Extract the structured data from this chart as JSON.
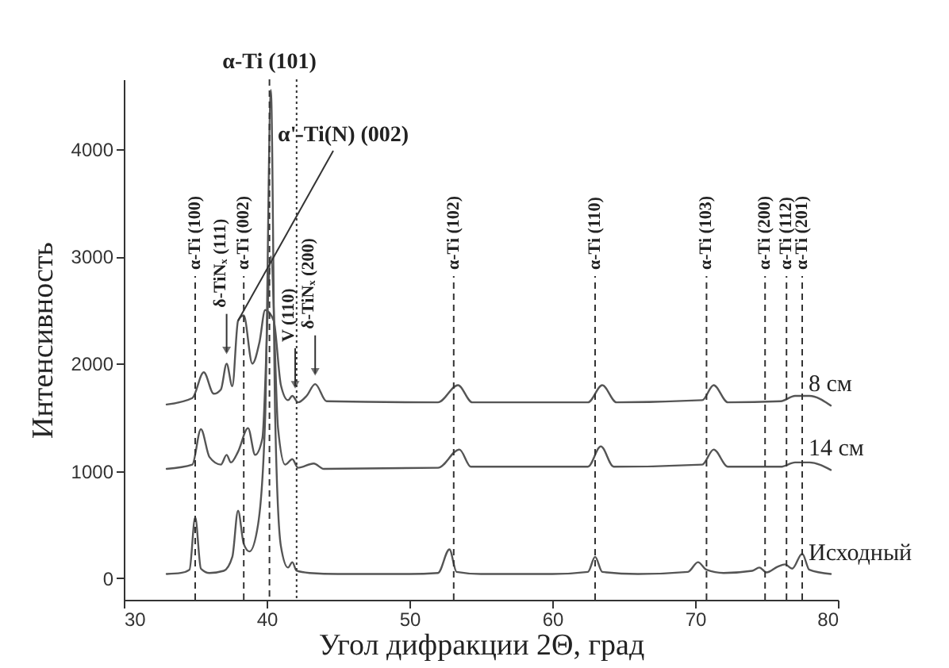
{
  "chart_data": {
    "type": "line",
    "xlabel": "Угол дифракции 2Θ, град",
    "ylabel": "Интенсивность",
    "xlim": [
      30,
      80
    ],
    "xticks": [
      30,
      40,
      50,
      60,
      70,
      80
    ],
    "ylim": [
      -200,
      4650
    ],
    "yticks": [
      0,
      1000,
      2000,
      3000,
      4000
    ],
    "grid": false,
    "legend": false,
    "marker": "none",
    "line_style": "solid",
    "series": [
      {
        "name": "8 см",
        "color": "#555555",
        "x": [
          33,
          34.8,
          35.6,
          36.3,
          36.8,
          37.2,
          37.6,
          38.0,
          38.4,
          39.0,
          39.5,
          39.9,
          40.5,
          41.0,
          41.5,
          41.8,
          42.2,
          42.8,
          43.4,
          44.2,
          52,
          53.4,
          54.4,
          62.5,
          63.5,
          64.5,
          70.5,
          71.3,
          72.3,
          76,
          77,
          78,
          79.5
        ],
        "values": [
          1620,
          1680,
          1920,
          1720,
          1760,
          2000,
          1790,
          2400,
          2450,
          2000,
          2200,
          2500,
          2400,
          1800,
          1660,
          1700,
          1640,
          1700,
          1810,
          1650,
          1640,
          1800,
          1640,
          1640,
          1800,
          1640,
          1660,
          1800,
          1640,
          1650,
          1700,
          1700,
          1610
        ]
      },
      {
        "name": "14 см",
        "color": "#555555",
        "x": [
          33,
          34.8,
          35.4,
          36,
          36.8,
          37.2,
          37.5,
          38.0,
          38.7,
          39.2,
          39.7,
          40.3,
          40.8,
          41.3,
          41.8,
          42.2,
          43.3,
          44,
          52,
          53.5,
          54.3,
          62.5,
          63.4,
          64.3,
          70.5,
          71.3,
          72.3,
          76,
          77,
          78,
          79.5
        ],
        "values": [
          1020,
          1060,
          1390,
          1130,
          1060,
          1150,
          1080,
          1180,
          1400,
          1150,
          1300,
          3000,
          1400,
          1060,
          1110,
          1030,
          1070,
          1020,
          1030,
          1200,
          1040,
          1040,
          1230,
          1040,
          1060,
          1200,
          1040,
          1040,
          1080,
          1080,
          1010
        ]
      },
      {
        "name": "Исходный",
        "color": "#555555",
        "x": [
          33,
          34,
          34.6,
          35.0,
          35.4,
          36,
          37,
          37.6,
          38.0,
          38.4,
          38.8,
          39.4,
          39.9,
          40.3,
          40.6,
          41.0,
          41.5,
          41.8,
          42.1,
          43,
          45,
          50,
          52,
          52.8,
          53.3,
          55,
          60,
          62.5,
          63.0,
          63.5,
          66,
          69.5,
          70.2,
          70.8,
          72,
          74,
          74.5,
          75,
          75.8,
          76.3,
          76.8,
          77.5,
          78,
          79.5
        ],
        "values": [
          40,
          50,
          80,
          570,
          90,
          50,
          70,
          200,
          630,
          320,
          250,
          500,
          1500,
          4550,
          1500,
          300,
          100,
          150,
          70,
          50,
          40,
          40,
          50,
          270,
          60,
          40,
          40,
          60,
          200,
          60,
          40,
          60,
          150,
          80,
          50,
          70,
          100,
          55,
          110,
          130,
          90,
          230,
          80,
          40
        ]
      }
    ],
    "ref_lines": [
      {
        "axis": "x",
        "value": 35.0,
        "label": "α-Ti (100)",
        "line_style": "dashed"
      },
      {
        "axis": "x",
        "value": 38.4,
        "label": "α-Ti (002)",
        "line_style": "dashed"
      },
      {
        "axis": "x",
        "value": 40.2,
        "line_style": "dashed"
      },
      {
        "axis": "x",
        "value": 42.1,
        "line_style": "dotted"
      },
      {
        "axis": "x",
        "value": 53.1,
        "label": "α-Ti (102)",
        "line_style": "dashed"
      },
      {
        "axis": "x",
        "value": 63.0,
        "label": "α-Ti (110)",
        "line_style": "dashed"
      },
      {
        "axis": "x",
        "value": 70.8,
        "label": "α-Ti (103)",
        "line_style": "dashed"
      },
      {
        "axis": "x",
        "value": 74.9,
        "label": "α-Ti (200)",
        "line_style": "dashed"
      },
      {
        "axis": "x",
        "value": 76.4,
        "label": "α-Ti (112)",
        "line_style": "dashed"
      },
      {
        "axis": "x",
        "value": 77.5,
        "label": "α-Ti (201)",
        "line_style": "dashed"
      }
    ],
    "annotations": [
      {
        "text": "α-Ti (101)",
        "x": 40.2,
        "y": 4550
      },
      {
        "text": "α'-Ti(N) (002)",
        "x": 38.0,
        "y": 2400
      },
      {
        "text": "δ-TiNₓ (111)",
        "x": 37.2,
        "y": 2050
      },
      {
        "text": "V (110)",
        "x": 42.0,
        "y": 1730
      },
      {
        "text": "δ-TiNₓ (200)",
        "x": 43.4,
        "y": 1850
      }
    ]
  }
}
